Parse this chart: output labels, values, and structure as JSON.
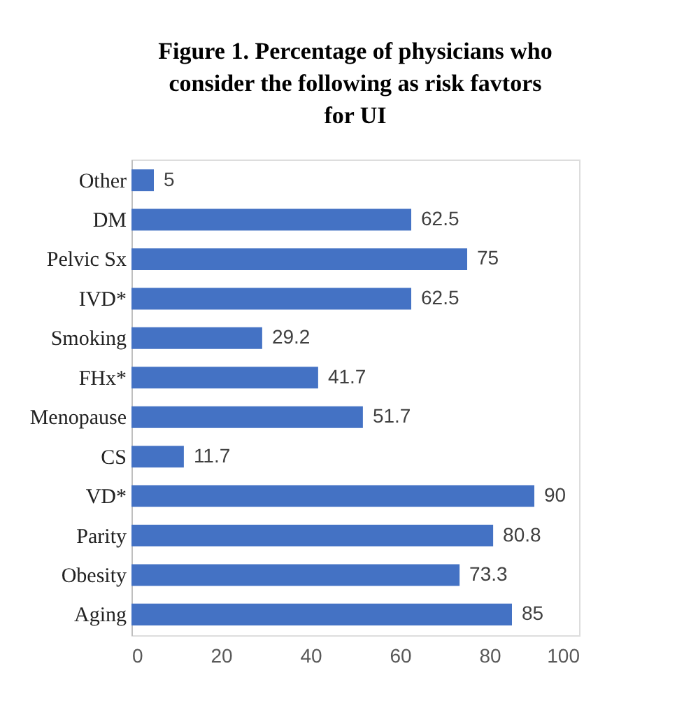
{
  "chart_data": {
    "type": "bar",
    "orientation": "horizontal",
    "title": "Figure 1. Percentage of physicians who consider the following as risk favtors for UI",
    "categories": [
      "Other",
      "DM",
      "Pelvic Sx",
      "IVD*",
      "Smoking",
      "FHx*",
      "Menopause",
      "CS",
      "VD*",
      "Parity",
      "Obesity",
      "Aging"
    ],
    "values": [
      5,
      62.5,
      75,
      62.5,
      29.2,
      41.7,
      51.7,
      11.7,
      90,
      80.8,
      73.3,
      85
    ],
    "color": "#4472c4",
    "xlim": [
      0,
      100
    ],
    "xticks": [
      0,
      20,
      40,
      60,
      80,
      100
    ],
    "data_labels": true,
    "grid": false
  }
}
